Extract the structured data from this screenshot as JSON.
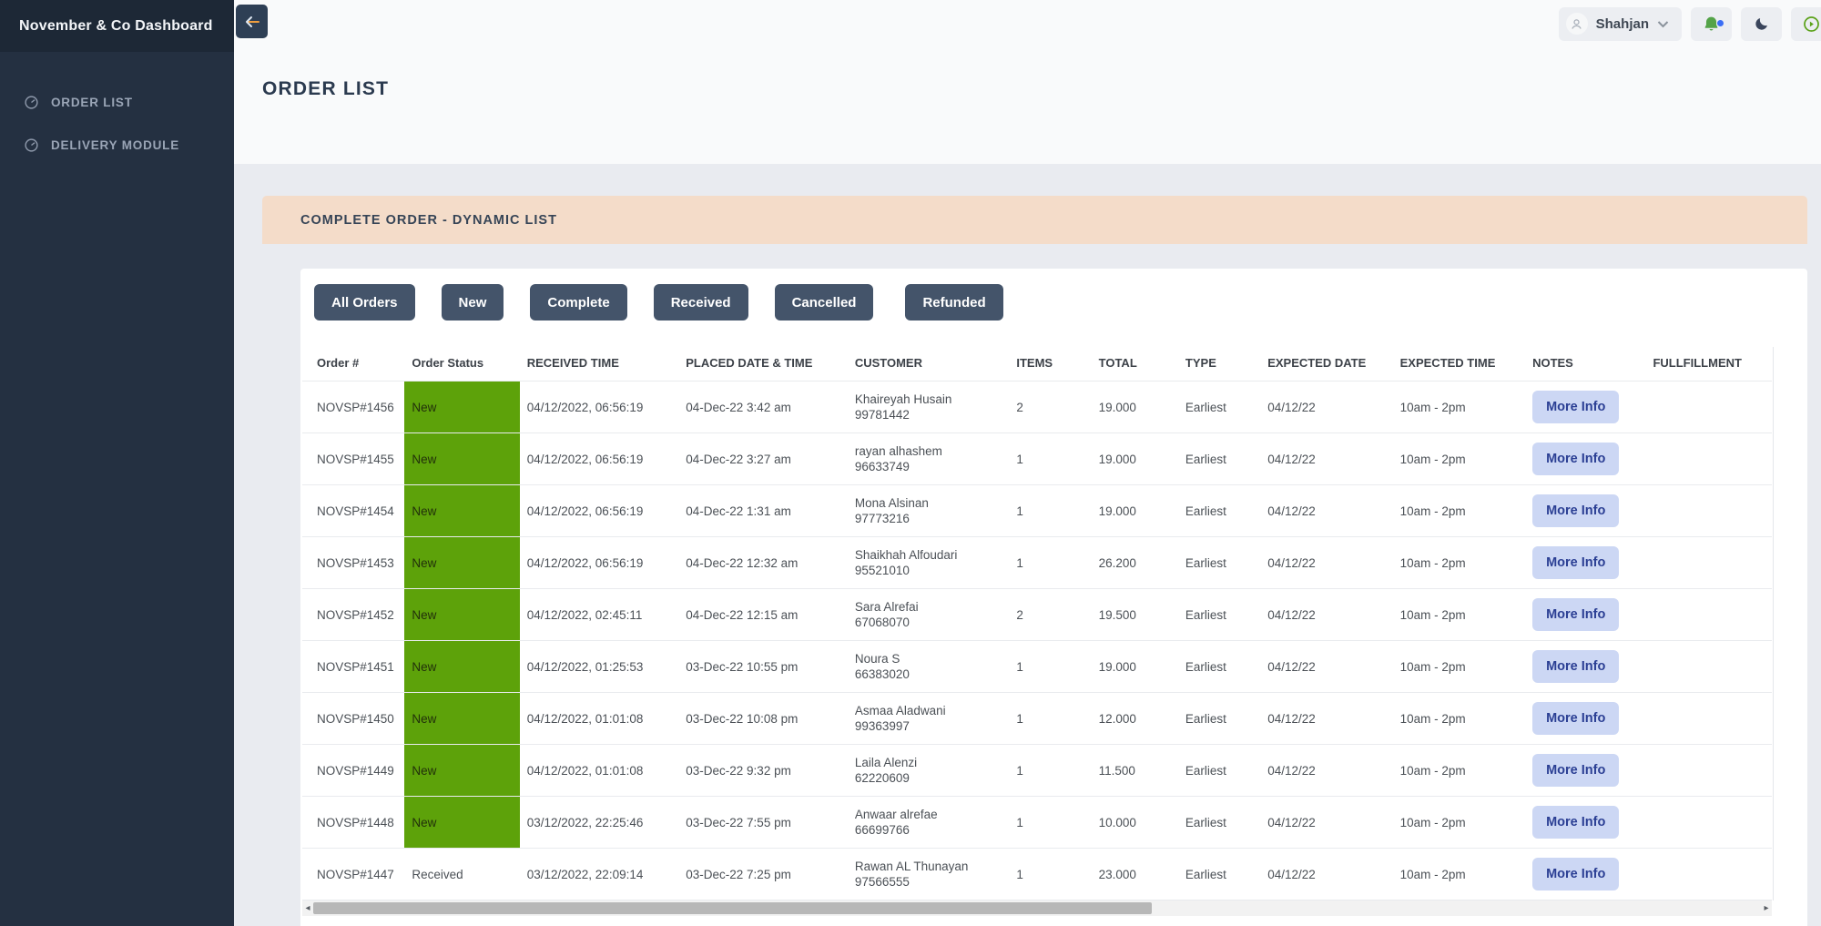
{
  "app": {
    "title": "November & Co Dashboard"
  },
  "sidebar": {
    "items": [
      {
        "label": "ORDER LIST",
        "icon": "gauge-icon"
      },
      {
        "label": "DELIVERY MODULE",
        "icon": "gauge-icon"
      }
    ]
  },
  "topbar": {
    "user": "Shahjan",
    "icons": [
      "back-arrow-icon",
      "user-avatar-icon",
      "chevron-down-icon",
      "bell-icon",
      "moon-icon",
      "play-circle-icon"
    ],
    "notification_dot": true
  },
  "page": {
    "title": "ORDER LIST"
  },
  "card": {
    "header": "COMPLETE ORDER - DYNAMIC LIST"
  },
  "filters": [
    "All Orders",
    "New",
    "Complete",
    "Received",
    "Cancelled",
    "Refunded"
  ],
  "table": {
    "columns": [
      "Order #",
      "Order Status",
      "RECEIVED TIME",
      "PLACED DATE & TIME",
      "CUSTOMER",
      "ITEMS",
      "TOTAL",
      "TYPE",
      "EXPECTED DATE",
      "EXPECTED TIME",
      "NOTES",
      "FULLFILLMENT"
    ],
    "more_info_label": "More Info",
    "rows": [
      {
        "order": "NOVSP#1456",
        "status": "New",
        "highlight": true,
        "received": "04/12/2022, 06:56:19",
        "placed": "04-Dec-22 3:42 am",
        "customer": "Khaireyah Husain",
        "phone": "99781442",
        "items": "2",
        "total": "19.000",
        "type": "Earliest",
        "exp_date": "04/12/22",
        "exp_time": "10am - 2pm"
      },
      {
        "order": "NOVSP#1455",
        "status": "New",
        "highlight": true,
        "received": "04/12/2022, 06:56:19",
        "placed": "04-Dec-22 3:27 am",
        "customer": "rayan alhashem",
        "phone": "96633749",
        "items": "1",
        "total": "19.000",
        "type": "Earliest",
        "exp_date": "04/12/22",
        "exp_time": "10am - 2pm"
      },
      {
        "order": "NOVSP#1454",
        "status": "New",
        "highlight": true,
        "received": "04/12/2022, 06:56:19",
        "placed": "04-Dec-22 1:31 am",
        "customer": "Mona Alsinan",
        "phone": "97773216",
        "items": "1",
        "total": "19.000",
        "type": "Earliest",
        "exp_date": "04/12/22",
        "exp_time": "10am - 2pm"
      },
      {
        "order": "NOVSP#1453",
        "status": "New",
        "highlight": true,
        "received": "04/12/2022, 06:56:19",
        "placed": "04-Dec-22 12:32 am",
        "customer": "Shaikhah Alfoudari",
        "phone": "95521010",
        "items": "1",
        "total": "26.200",
        "type": "Earliest",
        "exp_date": "04/12/22",
        "exp_time": "10am - 2pm"
      },
      {
        "order": "NOVSP#1452",
        "status": "New",
        "highlight": true,
        "received": "04/12/2022, 02:45:11",
        "placed": "04-Dec-22 12:15 am",
        "customer": "Sara Alrefai",
        "phone": "67068070",
        "items": "2",
        "total": "19.500",
        "type": "Earliest",
        "exp_date": "04/12/22",
        "exp_time": "10am - 2pm"
      },
      {
        "order": "NOVSP#1451",
        "status": "New",
        "highlight": true,
        "received": "04/12/2022, 01:25:53",
        "placed": "03-Dec-22 10:55 pm",
        "customer": "Noura S",
        "phone": "66383020",
        "items": "1",
        "total": "19.000",
        "type": "Earliest",
        "exp_date": "04/12/22",
        "exp_time": "10am - 2pm"
      },
      {
        "order": "NOVSP#1450",
        "status": "New",
        "highlight": true,
        "received": "04/12/2022, 01:01:08",
        "placed": "03-Dec-22 10:08 pm",
        "customer": "Asmaa Aladwani",
        "phone": "99363997",
        "items": "1",
        "total": "12.000",
        "type": "Earliest",
        "exp_date": "04/12/22",
        "exp_time": "10am - 2pm"
      },
      {
        "order": "NOVSP#1449",
        "status": "New",
        "highlight": true,
        "received": "04/12/2022, 01:01:08",
        "placed": "03-Dec-22 9:32 pm",
        "customer": "Laila Alenzi",
        "phone": "62220609",
        "items": "1",
        "total": "11.500",
        "type": "Earliest",
        "exp_date": "04/12/22",
        "exp_time": "10am - 2pm"
      },
      {
        "order": "NOVSP#1448",
        "status": "New",
        "highlight": true,
        "received": "03/12/2022, 22:25:46",
        "placed": "03-Dec-22 7:55 pm",
        "customer": "Anwaar alrefae",
        "phone": "66699766",
        "items": "1",
        "total": "10.000",
        "type": "Earliest",
        "exp_date": "04/12/22",
        "exp_time": "10am - 2pm"
      },
      {
        "order": "NOVSP#1447",
        "status": "Received",
        "highlight": false,
        "received": "03/12/2022, 22:09:14",
        "placed": "03-Dec-22 7:25 pm",
        "customer": "Rawan AL Thunayan",
        "phone": "97566555",
        "items": "1",
        "total": "23.000",
        "type": "Earliest",
        "exp_date": "04/12/22",
        "exp_time": "10am - 2pm"
      }
    ]
  },
  "scrollbar": {
    "left_arrow": "◂",
    "right_arrow": "▸"
  },
  "colors": {
    "sidebar_bg": "#243041",
    "sidebar_header_bg": "#1d2836",
    "card_header_bg": "#f4dcc9",
    "filter_button_bg": "#44546a",
    "status_new_bg": "#5da20a",
    "more_info_bg": "#ccd7f4",
    "more_info_text": "#2b3f94",
    "bell_green": "#54a348",
    "notification_dot_blue": "#3b6ef5",
    "lower_bg": "#e9ebf0"
  }
}
